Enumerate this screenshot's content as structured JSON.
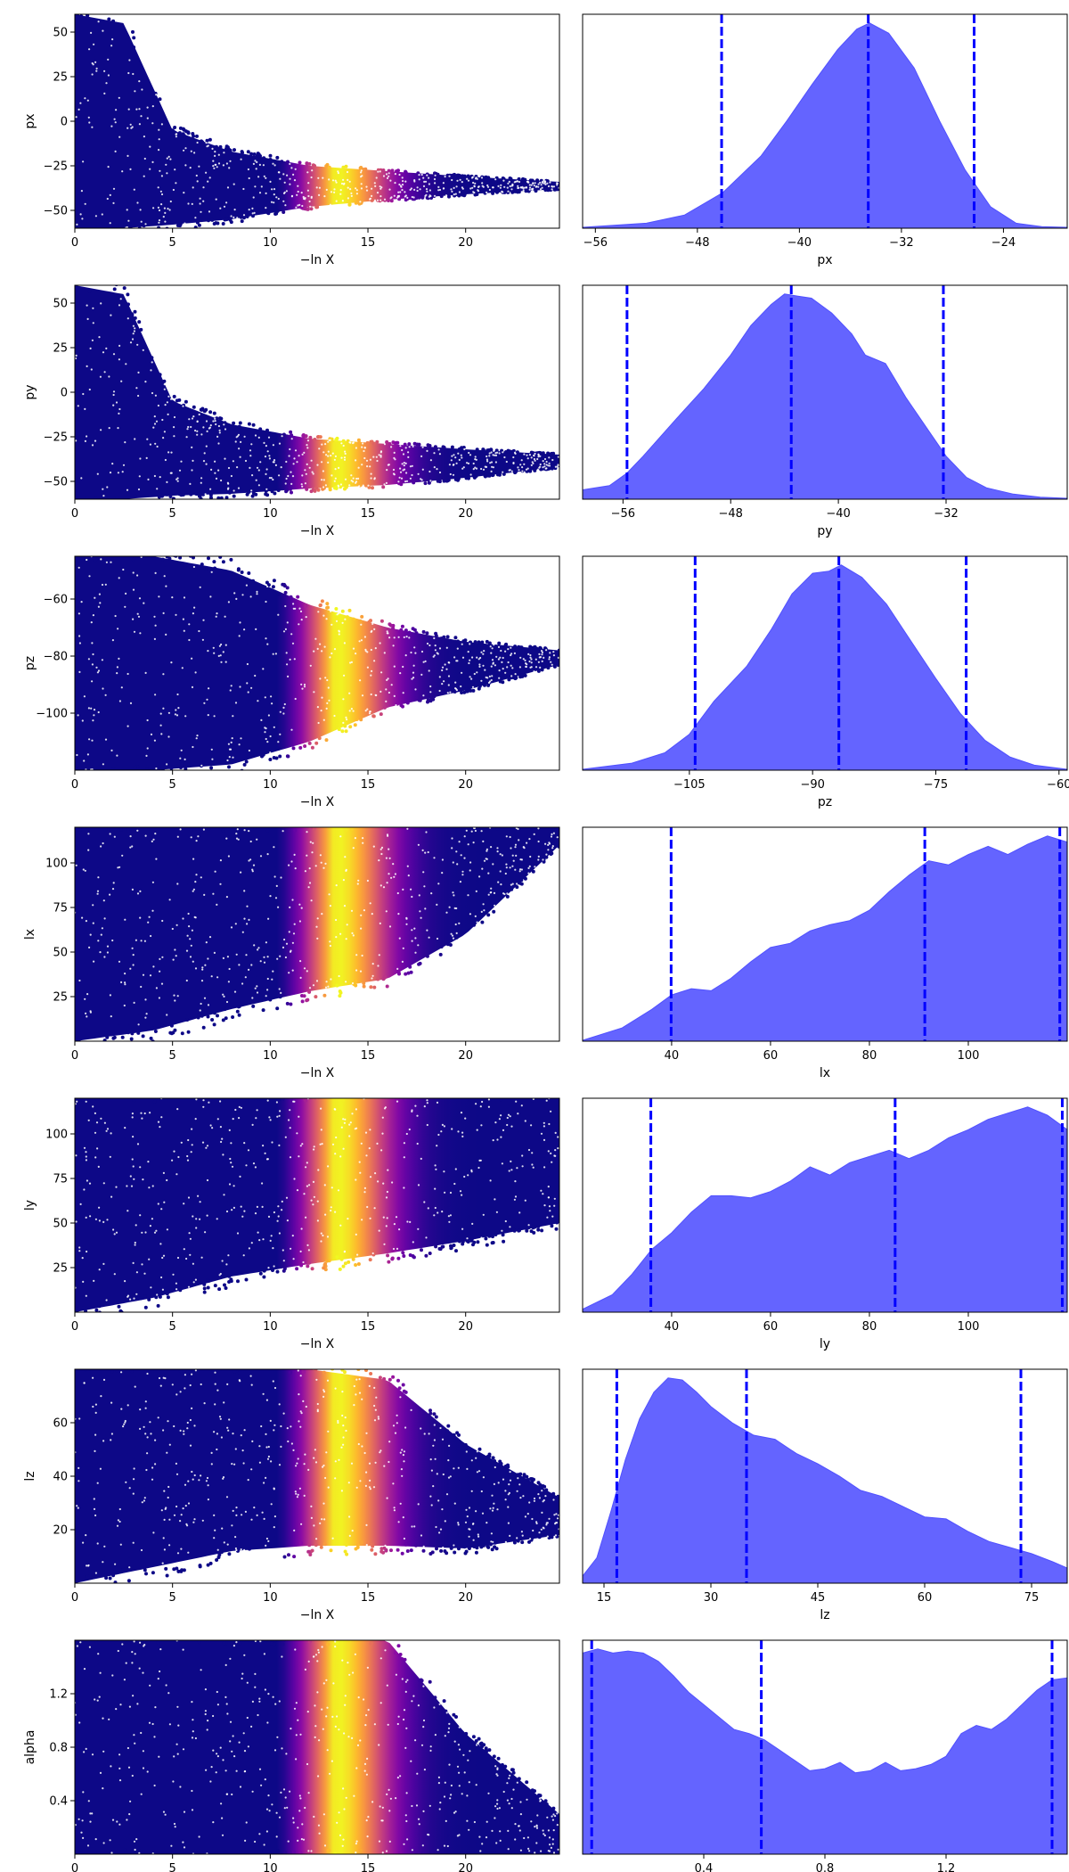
{
  "colors": {
    "kde_fill": "#6464ff",
    "kde_edge": "#5050ff",
    "quantile_line": "#0000ff",
    "colormap": "plasma"
  },
  "chart_data": [
    {
      "type": "scatter",
      "param": "px",
      "title": "",
      "xlabel": "−ln X",
      "ylabel": "px",
      "xlim": [
        0,
        24.8
      ],
      "ylim": [
        -60,
        60
      ],
      "xticks": [
        "0",
        "5",
        "10",
        "15",
        "20"
      ],
      "xtick_values": [
        0,
        5,
        10,
        15,
        20
      ],
      "yticks": [
        "50",
        "25",
        "0",
        "−25",
        "−50"
      ],
      "ytick_values": [
        50,
        25,
        0,
        -25,
        -50
      ],
      "envelope": {
        "x": [
          0,
          2.5,
          5,
          8,
          12,
          16,
          20,
          24.8
        ],
        "upper": [
          60,
          55,
          -5,
          -17,
          -25,
          -28,
          -31,
          -34
        ],
        "lower": [
          -60,
          -60,
          -58,
          -55,
          -48,
          -44,
          -41,
          -38
        ]
      },
      "color_peak_x": 13.3
    },
    {
      "type": "kde",
      "param": "px",
      "title": "",
      "xlabel": "px",
      "xlim": [
        -57,
        -19
      ],
      "xticks": [
        "−56",
        "−48",
        "−40",
        "−32",
        "−24"
      ],
      "xtick_values": [
        -56,
        -48,
        -40,
        -32,
        -24
      ],
      "quantiles": [
        -46.1,
        -34.6,
        -26.3
      ],
      "density": {
        "x": [
          -57,
          -52,
          -49,
          -46,
          -43,
          -41,
          -39,
          -37,
          -35.5,
          -34.5,
          -33,
          -31,
          -29,
          -27,
          -25,
          -23,
          -21,
          -19
        ],
        "y": [
          0,
          0.02,
          0.06,
          0.17,
          0.35,
          0.52,
          0.7,
          0.87,
          0.97,
          1.0,
          0.95,
          0.78,
          0.52,
          0.28,
          0.1,
          0.02,
          0.003,
          0
        ]
      }
    },
    {
      "type": "scatter",
      "param": "py",
      "title": "",
      "xlabel": "−ln X",
      "ylabel": "py",
      "xlim": [
        0,
        24.8
      ],
      "ylim": [
        -60,
        60
      ],
      "xticks": [
        "0",
        "5",
        "10",
        "15",
        "20"
      ],
      "xtick_values": [
        0,
        5,
        10,
        15,
        20
      ],
      "yticks": [
        "50",
        "25",
        "0",
        "−25",
        "−50"
      ],
      "ytick_values": [
        50,
        25,
        0,
        -25,
        -50
      ],
      "envelope": {
        "x": [
          0,
          2.5,
          5,
          8,
          12,
          16,
          20,
          24.8
        ],
        "upper": [
          60,
          55,
          -5,
          -18,
          -26,
          -29,
          -32,
          -35
        ],
        "lower": [
          -60,
          -60,
          -58,
          -57,
          -54,
          -52,
          -48,
          -42
        ]
      },
      "color_peak_x": 13.3
    },
    {
      "type": "kde",
      "param": "py",
      "title": "",
      "xlabel": "py",
      "xlim": [
        -59,
        -23
      ],
      "xticks": [
        "−56",
        "−48",
        "−40",
        "−32"
      ],
      "xtick_values": [
        -56,
        -48,
        -40,
        -32
      ],
      "quantiles": [
        -55.7,
        -43.5,
        -32.2
      ],
      "density": {
        "x": [
          -59,
          -57,
          -55.7,
          -54.5,
          -52,
          -50,
          -48,
          -46.5,
          -45,
          -44,
          -43,
          -42,
          -40.5,
          -39,
          -38,
          -36.5,
          -35,
          -33.5,
          -32,
          -30.5,
          -29,
          -27,
          -25,
          -23
        ],
        "y": [
          0.04,
          0.06,
          0.12,
          0.2,
          0.38,
          0.52,
          0.68,
          0.82,
          0.92,
          0.97,
          0.96,
          0.95,
          0.88,
          0.78,
          0.68,
          0.64,
          0.48,
          0.34,
          0.2,
          0.1,
          0.05,
          0.02,
          0.005,
          0
        ]
      }
    },
    {
      "type": "scatter",
      "param": "pz",
      "title": "",
      "xlabel": "−ln X",
      "ylabel": "pz",
      "xlim": [
        0,
        24.8
      ],
      "ylim": [
        -120,
        -45
      ],
      "xticks": [
        "0",
        "5",
        "10",
        "15",
        "20"
      ],
      "xtick_values": [
        0,
        5,
        10,
        15,
        20
      ],
      "yticks": [
        "−60",
        "−80",
        "−100"
      ],
      "ytick_values": [
        -60,
        -80,
        -100
      ],
      "envelope": {
        "x": [
          0,
          4,
          8,
          12,
          16,
          20,
          24.8
        ],
        "upper": [
          -45,
          -45,
          -50,
          -62,
          -70,
          -75,
          -78
        ],
        "lower": [
          -120,
          -120,
          -118,
          -110,
          -98,
          -92,
          -83
        ]
      },
      "color_peak_x": 13.3
    },
    {
      "type": "kde",
      "param": "pz",
      "title": "",
      "xlabel": "pz",
      "xlim": [
        -118,
        -59
      ],
      "xticks": [
        "−105",
        "−90",
        "−75",
        "−60"
      ],
      "xtick_values": [
        -105,
        -90,
        -75,
        -60
      ],
      "quantiles": [
        -104.3,
        -86.8,
        -71.3
      ],
      "density": {
        "x": [
          -118,
          -112,
          -108,
          -105,
          -102,
          -98,
          -95,
          -92.5,
          -90,
          -88,
          -86.5,
          -84,
          -81,
          -78,
          -75,
          -72,
          -69,
          -66,
          -63,
          -59
        ],
        "y": [
          0,
          0.03,
          0.08,
          0.17,
          0.33,
          0.5,
          0.68,
          0.85,
          0.95,
          0.96,
          0.99,
          0.93,
          0.8,
          0.62,
          0.44,
          0.27,
          0.14,
          0.06,
          0.02,
          0
        ]
      }
    },
    {
      "type": "scatter",
      "param": "lx",
      "title": "",
      "xlabel": "−ln X",
      "ylabel": "lx",
      "xlim": [
        0,
        24.8
      ],
      "ylim": [
        0,
        120
      ],
      "xticks": [
        "0",
        "5",
        "10",
        "15",
        "20"
      ],
      "xtick_values": [
        0,
        5,
        10,
        15,
        20
      ],
      "yticks": [
        "100",
        "75",
        "50",
        "25"
      ],
      "ytick_values": [
        100,
        75,
        50,
        25
      ],
      "envelope": {
        "x": [
          0,
          4,
          8,
          12,
          16,
          20,
          24.8
        ],
        "upper": [
          120,
          120,
          120,
          120,
          120,
          120,
          120
        ],
        "lower": [
          0,
          6,
          18,
          28,
          35,
          60,
          110
        ]
      },
      "color_peak_x": 13.3
    },
    {
      "type": "kde",
      "param": "lx",
      "title": "",
      "xlabel": "lx",
      "xlim": [
        22,
        120
      ],
      "xticks": [
        "40",
        "60",
        "80",
        "100"
      ],
      "xtick_values": [
        40,
        60,
        80,
        100
      ],
      "quantiles": [
        39.9,
        91.2,
        118.5
      ],
      "density": {
        "x": [
          22,
          30,
          36,
          40,
          44,
          48,
          52,
          56,
          60,
          64,
          68,
          72,
          76,
          80,
          84,
          88,
          92,
          96,
          100,
          104,
          108,
          112,
          116,
          120
        ],
        "y": [
          0,
          0.06,
          0.15,
          0.22,
          0.25,
          0.24,
          0.3,
          0.38,
          0.45,
          0.47,
          0.53,
          0.56,
          0.58,
          0.63,
          0.72,
          0.8,
          0.87,
          0.85,
          0.9,
          0.94,
          0.9,
          0.95,
          0.99,
          0.96
        ]
      }
    },
    {
      "type": "scatter",
      "param": "ly",
      "title": "",
      "xlabel": "−ln X",
      "ylabel": "ly",
      "xlim": [
        0,
        24.8
      ],
      "ylim": [
        0,
        120
      ],
      "xticks": [
        "0",
        "5",
        "10",
        "15",
        "20"
      ],
      "xtick_values": [
        0,
        5,
        10,
        15,
        20
      ],
      "yticks": [
        "100",
        "75",
        "50",
        "25"
      ],
      "ytick_values": [
        100,
        75,
        50,
        25
      ],
      "envelope": {
        "x": [
          0,
          4,
          8,
          12,
          16,
          20,
          24.8
        ],
        "upper": [
          120,
          120,
          120,
          120,
          120,
          120,
          120
        ],
        "lower": [
          0,
          8,
          20,
          27,
          33,
          40,
          50
        ]
      },
      "color_peak_x": 13.3
    },
    {
      "type": "kde",
      "param": "ly",
      "title": "",
      "xlabel": "ly",
      "xlim": [
        22,
        120
      ],
      "xticks": [
        "40",
        "60",
        "80",
        "100"
      ],
      "xtick_values": [
        40,
        60,
        80,
        100
      ],
      "quantiles": [
        35.8,
        85.2,
        119
      ],
      "density": {
        "x": [
          22,
          28,
          32,
          36,
          40,
          44,
          48,
          52,
          56,
          60,
          64,
          68,
          72,
          76,
          80,
          84,
          88,
          92,
          96,
          100,
          104,
          108,
          112,
          116,
          120
        ],
        "y": [
          0.01,
          0.08,
          0.18,
          0.3,
          0.38,
          0.48,
          0.56,
          0.56,
          0.55,
          0.58,
          0.63,
          0.7,
          0.66,
          0.72,
          0.75,
          0.78,
          0.74,
          0.78,
          0.84,
          0.88,
          0.93,
          0.96,
          0.99,
          0.95,
          0.88
        ]
      }
    },
    {
      "type": "scatter",
      "param": "lz",
      "title": "",
      "xlabel": "−ln X",
      "ylabel": "lz",
      "xlim": [
        0,
        24.8
      ],
      "ylim": [
        0,
        80
      ],
      "xticks": [
        "0",
        "5",
        "10",
        "15",
        "20"
      ],
      "xtick_values": [
        0,
        5,
        10,
        15,
        20
      ],
      "yticks": [
        "60",
        "40",
        "20"
      ],
      "ytick_values": [
        60,
        40,
        20
      ],
      "envelope": {
        "x": [
          0,
          4,
          8,
          12,
          16,
          20,
          24.8
        ],
        "upper": [
          80,
          80,
          80,
          80,
          76,
          52,
          32
        ],
        "lower": [
          0,
          6,
          12,
          14,
          14,
          13,
          18
        ]
      },
      "color_peak_x": 13.3
    },
    {
      "type": "kde",
      "param": "lz",
      "title": "",
      "xlabel": "lz",
      "xlim": [
        12,
        80
      ],
      "xticks": [
        "15",
        "30",
        "45",
        "60",
        "75"
      ],
      "xtick_values": [
        15,
        30,
        45,
        60,
        75
      ],
      "quantiles": [
        16.8,
        35,
        73.5
      ],
      "density": {
        "x": [
          12,
          14,
          16,
          18,
          20,
          22,
          24,
          26,
          28,
          30,
          33,
          36,
          39,
          42,
          45,
          48,
          51,
          54,
          57,
          60,
          63,
          66,
          69,
          72,
          75,
          78,
          80
        ],
        "y": [
          0.03,
          0.12,
          0.35,
          0.6,
          0.8,
          0.93,
          1.0,
          0.99,
          0.93,
          0.86,
          0.78,
          0.72,
          0.7,
          0.63,
          0.58,
          0.52,
          0.45,
          0.42,
          0.37,
          0.32,
          0.31,
          0.25,
          0.2,
          0.17,
          0.14,
          0.1,
          0.07
        ]
      }
    },
    {
      "type": "scatter",
      "param": "alpha",
      "title": "",
      "xlabel": "−ln X",
      "ylabel": "alpha",
      "xlim": [
        0,
        24.8
      ],
      "ylim": [
        0,
        1.6
      ],
      "xticks": [
        "0",
        "5",
        "10",
        "15",
        "20"
      ],
      "xtick_values": [
        0,
        5,
        10,
        15,
        20
      ],
      "yticks": [
        "1.2",
        "0.8",
        "0.4"
      ],
      "ytick_values": [
        1.2,
        0.8,
        0.4
      ],
      "envelope": {
        "x": [
          0,
          4,
          8,
          12,
          16,
          20,
          24.8
        ],
        "upper": [
          1.6,
          1.6,
          1.6,
          1.6,
          1.6,
          0.9,
          0.3
        ],
        "lower": [
          0,
          0,
          0,
          0,
          0,
          0,
          0
        ]
      },
      "color_peak_x": 13.3
    },
    {
      "type": "kde",
      "param": "alpha",
      "title": "",
      "xlabel": "alpha",
      "xlim": [
        0,
        1.6
      ],
      "xticks": [
        "0.4",
        "0.8",
        "1.2"
      ],
      "xtick_values": [
        0.4,
        0.8,
        1.2
      ],
      "quantiles": [
        0.03,
        0.59,
        1.55
      ],
      "density": {
        "x": [
          0,
          0.05,
          0.1,
          0.15,
          0.2,
          0.25,
          0.3,
          0.35,
          0.4,
          0.45,
          0.5,
          0.55,
          0.6,
          0.65,
          0.7,
          0.75,
          0.8,
          0.85,
          0.9,
          0.95,
          1.0,
          1.05,
          1.1,
          1.15,
          1.2,
          1.25,
          1.3,
          1.35,
          1.4,
          1.45,
          1.5,
          1.55,
          1.6
        ],
        "y": [
          0.97,
          0.99,
          0.97,
          0.98,
          0.97,
          0.93,
          0.86,
          0.78,
          0.72,
          0.66,
          0.6,
          0.58,
          0.55,
          0.5,
          0.45,
          0.4,
          0.41,
          0.44,
          0.39,
          0.4,
          0.44,
          0.4,
          0.41,
          0.43,
          0.47,
          0.58,
          0.62,
          0.6,
          0.65,
          0.72,
          0.79,
          0.84,
          0.85
        ]
      }
    }
  ]
}
